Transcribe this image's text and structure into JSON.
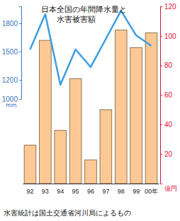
{
  "chart_data": {
    "type": "bar",
    "title": [
      "日本全国の年間降水量と",
      "水害被害額"
    ],
    "categories": [
      "92",
      "93",
      "94",
      "95",
      "96",
      "97",
      "98",
      "99",
      "00年"
    ],
    "series": [
      {
        "type": "bar",
        "axis": "y2",
        "color": "#fcc994",
        "values": [
          26,
          97,
          36,
          71,
          16,
          50,
          104,
          92,
          102
        ]
      },
      {
        "type": "line",
        "color": "#3c9ee0",
        "values": [
          1524,
          1897,
          1150,
          1524,
          1337,
          1636,
          1934,
          1673,
          1561
        ]
      }
    ],
    "y_label": "mm",
    "y2_label": "億円",
    "ylim": [
      1000,
      1980
    ],
    "yticks": [
      1000,
      1200,
      1500,
      1800
    ],
    "y2lim": [
      0,
      120
    ],
    "y2ticks": [
      20,
      40,
      60,
      80,
      100,
      120
    ],
    "annotations": [
      "水害統計は国土交通省河川局によるもの"
    ],
    "grid": false
  }
}
